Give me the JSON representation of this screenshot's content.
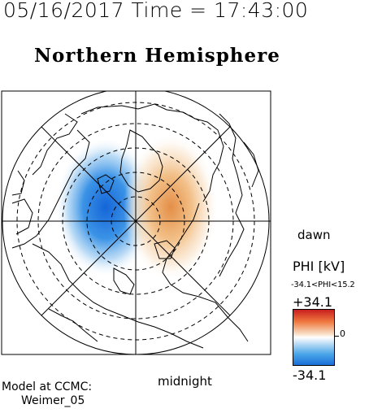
{
  "header": {
    "datetime_label": "05/16/2017 Time = 17:43:00",
    "hemisphere_title": "Northern Hemisphere"
  },
  "map": {
    "projection": "polar-stereographic",
    "labels": {
      "dawn": "dawn",
      "midnight": "midnight"
    },
    "potential_pattern": {
      "negative_cell": "dusk side (left)",
      "positive_cell": "dawn side (right)",
      "colors": {
        "positive": "#e8a060",
        "negative": "#1a6fd8"
      }
    }
  },
  "colorbar": {
    "title": "PHI [kV]",
    "range_label": "-34.1<PHI<15.2",
    "max_label": "+34.1",
    "min_label": "-34.1",
    "zero_label": "0",
    "max": 34.1,
    "min": -34.1,
    "colors": [
      "#c81e1e",
      "#f07a40",
      "#ffffff",
      "#4aa6e8",
      "#1a6fd8"
    ]
  },
  "footer": {
    "model_line1": "Model at CCMC:",
    "model_line2": "Weimer_05"
  }
}
